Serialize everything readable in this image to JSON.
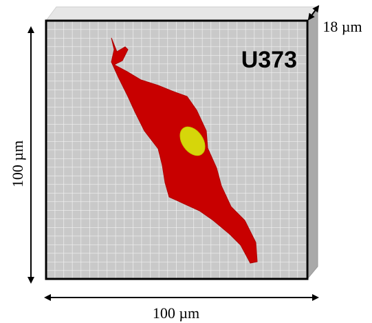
{
  "labels": {
    "cell_line": "U373",
    "depth": "18 µm",
    "height": "100 µm",
    "width": "100 µm"
  }
}
